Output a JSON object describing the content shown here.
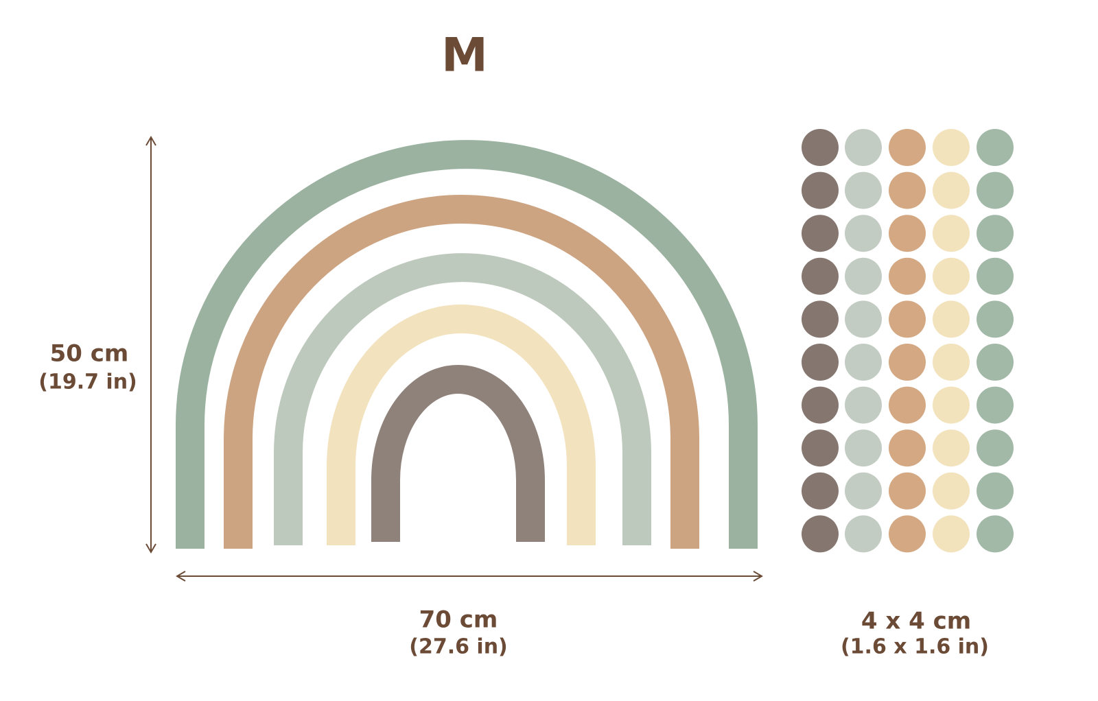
{
  "title": "M",
  "height": {
    "metric": "50 cm",
    "imperial": "(19.7 in)"
  },
  "width": {
    "metric": "70 cm",
    "imperial": "(27.6 in)"
  },
  "dots": {
    "metric": "4 x 4 cm",
    "imperial": "(1.6 x 1.6 in)"
  }
}
